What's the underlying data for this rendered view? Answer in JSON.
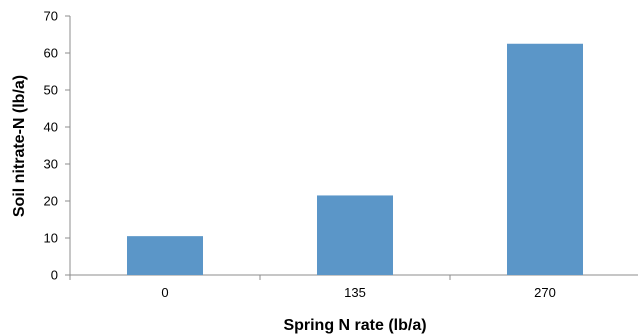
{
  "chart_data": {
    "type": "bar",
    "categories": [
      "0",
      "135",
      "270"
    ],
    "values": [
      10.5,
      21.5,
      62.5
    ],
    "title": "",
    "xlabel": "Spring N rate (lb/a)",
    "ylabel": "Soil nitrate-N (lb/a)",
    "ylim": [
      0,
      70
    ],
    "yticks": [
      0,
      10,
      20,
      30,
      40,
      50,
      60,
      70
    ],
    "grid": false,
    "legend": "none",
    "bar_color": "#5b96c8",
    "axis_color": "#8c8c8c"
  }
}
